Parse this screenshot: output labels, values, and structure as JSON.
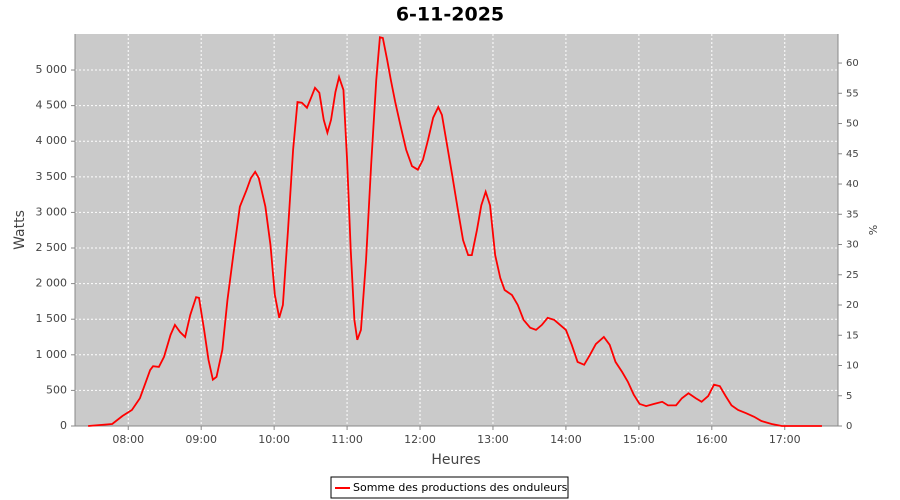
{
  "chart_data": {
    "type": "line",
    "title": "6-11-2025",
    "x_label": "Heures",
    "y_label": "Watts",
    "y2_label": "%",
    "x": [
      7.45,
      7.78,
      7.92,
      8.05,
      8.16,
      8.3,
      8.34,
      8.42,
      8.49,
      8.58,
      8.64,
      8.71,
      8.78,
      8.85,
      8.93,
      8.97,
      9.04,
      9.1,
      9.16,
      9.21,
      9.29,
      9.36,
      9.44,
      9.53,
      9.62,
      9.68,
      9.74,
      9.79,
      9.88,
      9.95,
      10.01,
      10.07,
      10.12,
      10.19,
      10.26,
      10.32,
      10.38,
      10.45,
      10.51,
      10.56,
      10.62,
      10.68,
      10.73,
      10.78,
      10.84,
      10.89,
      10.95,
      11.0,
      11.05,
      11.1,
      11.14,
      11.19,
      11.26,
      11.33,
      11.4,
      11.45,
      11.49,
      11.55,
      11.6,
      11.66,
      11.73,
      11.81,
      11.89,
      11.97,
      12.04,
      12.11,
      12.18,
      12.25,
      12.3,
      12.37,
      12.44,
      12.52,
      12.59,
      12.66,
      12.71,
      12.78,
      12.84,
      12.9,
      12.96,
      13.03,
      13.1,
      13.16,
      13.26,
      13.34,
      13.42,
      13.51,
      13.59,
      13.67,
      13.75,
      13.84,
      13.92,
      14.0,
      14.08,
      14.16,
      14.25,
      14.33,
      14.41,
      14.52,
      14.6,
      14.68,
      14.77,
      14.85,
      14.93,
      15.01,
      15.1,
      15.21,
      15.32,
      15.4,
      15.51,
      15.59,
      15.68,
      15.78,
      15.86,
      15.95,
      16.03,
      16.11,
      16.19,
      16.27,
      16.36,
      16.47,
      16.58,
      16.68,
      16.82,
      16.96,
      17.51
    ],
    "series": [
      {
        "name": "Somme des productions des onduleurs",
        "color": "#ff0000",
        "values": [
          0,
          28,
          140,
          225,
          390,
          785,
          840,
          830,
          970,
          1280,
          1420,
          1320,
          1250,
          1560,
          1810,
          1800,
          1350,
          930,
          650,
          690,
          1070,
          1770,
          2400,
          3080,
          3310,
          3480,
          3570,
          3480,
          3080,
          2540,
          1840,
          1520,
          1700,
          2750,
          3880,
          4550,
          4540,
          4470,
          4620,
          4750,
          4680,
          4300,
          4120,
          4300,
          4690,
          4900,
          4720,
          3740,
          2470,
          1490,
          1210,
          1350,
          2330,
          3670,
          4860,
          5460,
          5450,
          5140,
          4860,
          4550,
          4230,
          3880,
          3650,
          3600,
          3740,
          4020,
          4330,
          4480,
          4370,
          3950,
          3530,
          3030,
          2610,
          2400,
          2400,
          2750,
          3100,
          3290,
          3100,
          2400,
          2080,
          1910,
          1840,
          1700,
          1490,
          1380,
          1350,
          1420,
          1520,
          1490,
          1420,
          1350,
          1140,
          900,
          860,
          1000,
          1150,
          1250,
          1140,
          900,
          760,
          620,
          440,
          310,
          280,
          310,
          340,
          290,
          290,
          390,
          460,
          390,
          340,
          420,
          580,
          560,
          420,
          290,
          225,
          180,
          130,
          70,
          28,
          0,
          0
        ]
      }
    ],
    "xlim": [
      7.27,
      17.73
    ],
    "xticks": [
      {
        "value": 8,
        "label": "08:00"
      },
      {
        "value": 9,
        "label": "09:00"
      },
      {
        "value": 10,
        "label": "10:00"
      },
      {
        "value": 11,
        "label": "11:00"
      },
      {
        "value": 12,
        "label": "12:00"
      },
      {
        "value": 13,
        "label": "13:00"
      },
      {
        "value": 14,
        "label": "14:00"
      },
      {
        "value": 15,
        "label": "15:00"
      },
      {
        "value": 16,
        "label": "16:00"
      },
      {
        "value": 17,
        "label": "17:00"
      }
    ],
    "ylim": [
      0,
      5506
    ],
    "yticks": [
      0,
      500,
      {
        "value": 1000,
        "label": "1 000"
      },
      {
        "value": 1500,
        "label": "1 500"
      },
      {
        "value": 2000,
        "label": "2 000"
      },
      {
        "value": 2500,
        "label": "2 500"
      },
      {
        "value": 3000,
        "label": "3 000"
      },
      {
        "value": 3500,
        "label": "3 500"
      },
      {
        "value": 4000,
        "label": "4 000"
      },
      {
        "value": 4500,
        "label": "4 500"
      },
      {
        "value": 5000,
        "label": "5 000"
      }
    ],
    "y2lim": [
      0,
      64.8
    ],
    "y2ticks": [
      0,
      5,
      10,
      15,
      20,
      25,
      30,
      35,
      40,
      45,
      50,
      55,
      60
    ],
    "grid": true,
    "background": "#cacaca",
    "legend": "bottom"
  }
}
